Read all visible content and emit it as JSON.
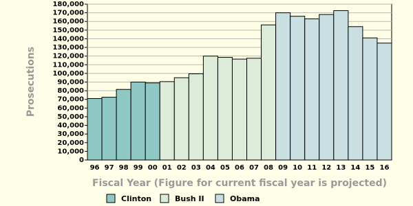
{
  "chart_data": {
    "type": "bar",
    "x_label": "Fiscal Year (Figure for current fiscal year is projected)",
    "y_label": "Prosecutions",
    "categories": [
      "96",
      "97",
      "98",
      "99",
      "00",
      "01",
      "02",
      "03",
      "04",
      "05",
      "06",
      "07",
      "08",
      "09",
      "10",
      "11",
      "12",
      "13",
      "14",
      "15",
      "16"
    ],
    "series": [
      {
        "name": "Clinton",
        "color": "#8fc8c4",
        "values": [
          71000,
          72500,
          81500,
          90000,
          89000,
          null,
          null,
          null,
          null,
          null,
          null,
          null,
          null,
          null,
          null,
          null,
          null,
          null,
          null,
          null,
          null
        ]
      },
      {
        "name": "Bush II",
        "color": "#dcecd9",
        "values": [
          null,
          null,
          null,
          null,
          null,
          90500,
          95000,
          99500,
          120000,
          118500,
          116500,
          117500,
          156000,
          null,
          null,
          null,
          null,
          null,
          null,
          null,
          null
        ]
      },
      {
        "name": "Obama",
        "color": "#c9dfe2",
        "values": [
          null,
          null,
          null,
          null,
          null,
          null,
          null,
          null,
          null,
          null,
          null,
          null,
          null,
          170000,
          166000,
          163000,
          168000,
          172500,
          154000,
          141000,
          135000
        ]
      }
    ],
    "ylim": [
      0,
      180000
    ],
    "yticks": [
      0,
      {
        "value": 10000,
        "label": "10,000"
      },
      {
        "value": 20000,
        "label": "20,000"
      },
      {
        "value": 30000,
        "label": "30,000"
      },
      {
        "value": 40000,
        "label": "40,000"
      },
      {
        "value": 50000,
        "label": "50,000"
      },
      {
        "value": 60000,
        "label": "60,000"
      },
      {
        "value": 70000,
        "label": "70,000"
      },
      {
        "value": 80000,
        "label": "80,000"
      },
      {
        "value": 90000,
        "label": "90,000"
      },
      {
        "value": 100000,
        "label": "100,000"
      },
      {
        "value": 110000,
        "label": "110,000"
      },
      {
        "value": 120000,
        "label": "120,000"
      },
      {
        "value": 130000,
        "label": "130,000"
      },
      {
        "value": 140000,
        "label": "140,000"
      },
      {
        "value": 150000,
        "label": "150,000"
      },
      {
        "value": 160000,
        "label": "160,000"
      },
      {
        "value": 170000,
        "label": "170,000"
      },
      {
        "value": 180000,
        "label": "180,000"
      }
    ],
    "grid": true
  }
}
